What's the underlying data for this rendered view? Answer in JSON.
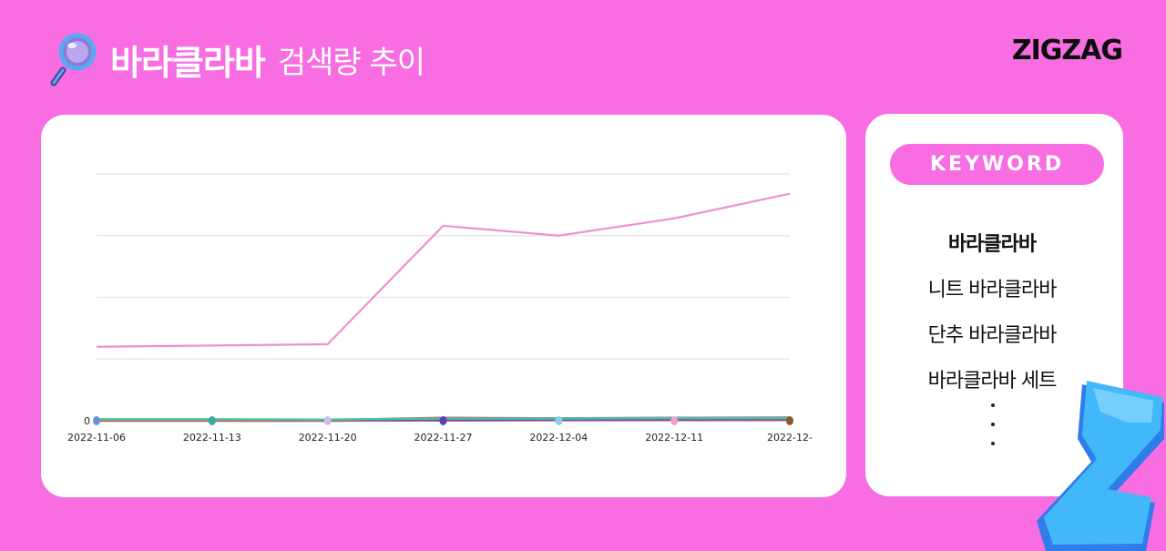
{
  "header": {
    "keyword": "바라클라바",
    "subtitle": "검색량 추이",
    "logo": "ZIGZAG",
    "icon": "magnifier-icon"
  },
  "keyword_panel": {
    "badge": "KEYWORD",
    "items": [
      "바라클라바",
      "니트 바라클라바",
      "단추 바라클라바",
      "바라클라바 세트"
    ],
    "more_indicator": "…"
  },
  "colors": {
    "background": "#f86de2",
    "card": "#ffffff",
    "main_line": "#ef8fcf",
    "grid": "#e9e9e9"
  },
  "chart_data": {
    "type": "line",
    "x": [
      "2022-11-06",
      "2022-11-13",
      "2022-11-20",
      "2022-11-27",
      "2022-12-04",
      "2022-12-11",
      "2022-12-"
    ],
    "ylabel_ticks": [
      "0"
    ],
    "grid": true,
    "ylim": [
      0,
      100
    ],
    "series": [
      {
        "values": [
          30,
          30.5,
          31,
          79,
          75,
          82,
          92
        ],
        "color": "#ef8fcf"
      },
      {
        "values": [
          0.6,
          0.6,
          0.5,
          0.9,
          0.9,
          1.1,
          1.1
        ],
        "color": "#3cc9a0"
      },
      {
        "values": [
          0.3,
          0.3,
          0.3,
          1.2,
          1.0,
          1.2,
          1.3
        ],
        "color": "#e8484f"
      },
      {
        "values": [
          0.2,
          0.2,
          0.2,
          0.3,
          0.4,
          0.5,
          0.6
        ],
        "color": "#7b3fe4"
      },
      {
        "values": [
          0.1,
          0.1,
          0.1,
          0.2,
          0.3,
          0.3,
          0.5
        ],
        "color": "#f0a030"
      },
      {
        "values": [
          0.0,
          0.0,
          0.0,
          0.1,
          0.2,
          0.2,
          0.3
        ],
        "color": "#8b5a2b"
      }
    ],
    "point_colors": [
      "#6a8fd8",
      "#3aa8a0",
      "#c8c0e8",
      "#5a3fb0",
      "#8ecde8",
      "#f0a0c8",
      "#8b5a2b"
    ]
  }
}
